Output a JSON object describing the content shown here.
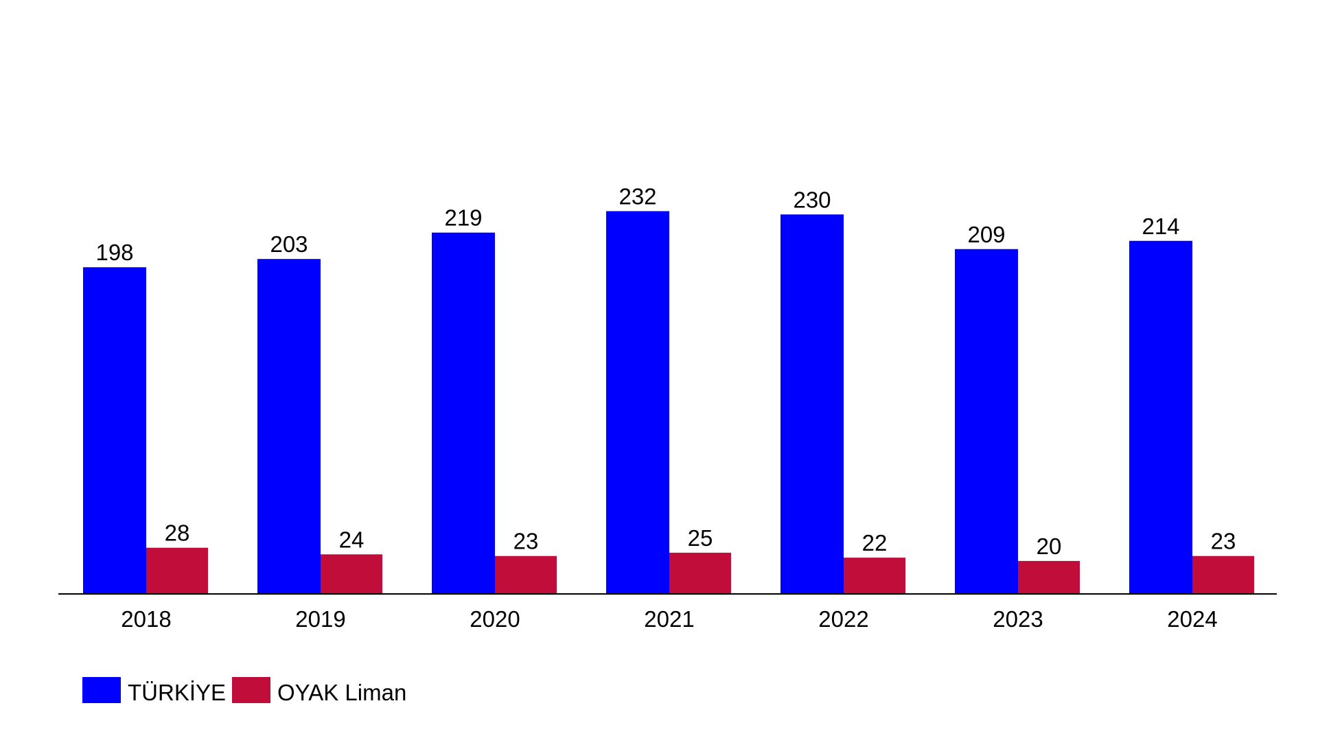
{
  "chart_data": {
    "type": "bar",
    "title": "",
    "xlabel": "",
    "ylabel": "",
    "categories": [
      "2018",
      "2019",
      "2020",
      "2021",
      "2022",
      "2023",
      "2024"
    ],
    "series": [
      {
        "name": "TÜRKİYE",
        "color": "#0000FF",
        "values": [
          198,
          203,
          219,
          232,
          230,
          209,
          214
        ]
      },
      {
        "name": "OYAK Liman",
        "color": "#C00D3A",
        "values": [
          28,
          24,
          23,
          25,
          22,
          20,
          23
        ]
      }
    ],
    "ylim": [
      0,
      300
    ],
    "grid": false,
    "legend_position": "bottom-left",
    "data_labels": true
  }
}
